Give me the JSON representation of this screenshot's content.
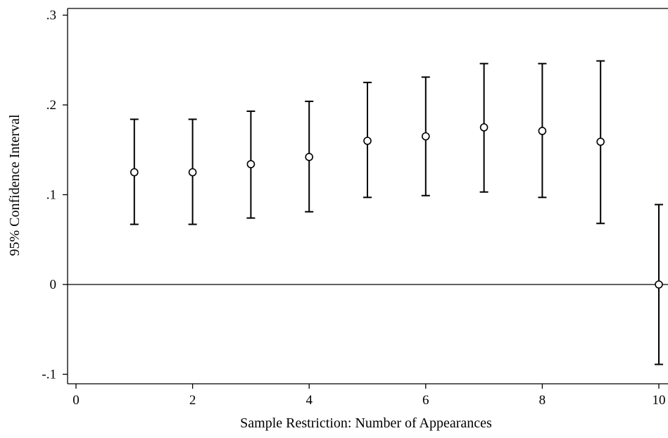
{
  "chart_data": {
    "type": "scatter",
    "subtype": "point estimates with 95% confidence interval error bars",
    "xlabel": "Sample Restriction: Number of Appearances",
    "ylabel": "95% Confidence Interval",
    "xlim": [
      0,
      10
    ],
    "ylim": [
      -0.1,
      0.3
    ],
    "x_ticks": [
      0,
      2,
      4,
      6,
      8,
      10
    ],
    "x_tick_labels": [
      "0",
      "2",
      "4",
      "6",
      "8",
      "10"
    ],
    "y_ticks": [
      -0.1,
      0,
      0.1,
      0.2,
      0.3
    ],
    "y_tick_labels": [
      "-.1",
      "0",
      ".1",
      ".2",
      ".3"
    ],
    "reference_line_y": 0,
    "grid": false,
    "legend": "none",
    "marker": "hollow circle",
    "color": "#000000",
    "points": [
      {
        "x": 1,
        "estimate": 0.125,
        "ci_low": 0.067,
        "ci_high": 0.184
      },
      {
        "x": 2,
        "estimate": 0.125,
        "ci_low": 0.067,
        "ci_high": 0.184
      },
      {
        "x": 3,
        "estimate": 0.134,
        "ci_low": 0.074,
        "ci_high": 0.193
      },
      {
        "x": 4,
        "estimate": 0.142,
        "ci_low": 0.081,
        "ci_high": 0.204
      },
      {
        "x": 5,
        "estimate": 0.16,
        "ci_low": 0.097,
        "ci_high": 0.225
      },
      {
        "x": 6,
        "estimate": 0.165,
        "ci_low": 0.099,
        "ci_high": 0.231
      },
      {
        "x": 7,
        "estimate": 0.175,
        "ci_low": 0.103,
        "ci_high": 0.246
      },
      {
        "x": 8,
        "estimate": 0.171,
        "ci_low": 0.097,
        "ci_high": 0.246
      },
      {
        "x": 9,
        "estimate": 0.159,
        "ci_low": 0.068,
        "ci_high": 0.249
      },
      {
        "x": 10,
        "estimate": 0.0,
        "ci_low": -0.089,
        "ci_high": 0.089
      }
    ]
  }
}
